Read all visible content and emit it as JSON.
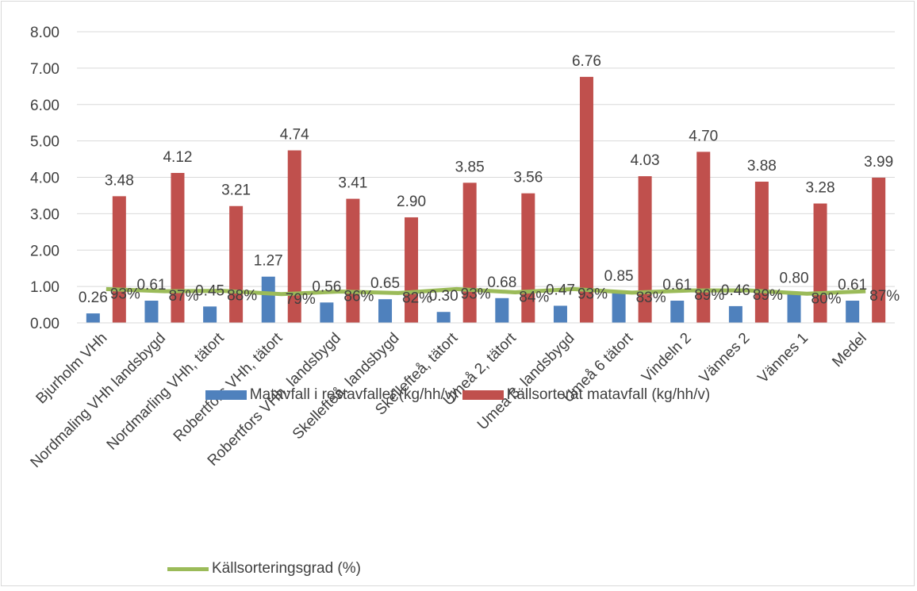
{
  "chart_data": {
    "type": "bar",
    "categories": [
      "Bjurholm VHh",
      "Nordmaling VHh landsbygd",
      "Nordmarling VHh, tätort",
      "Robertfors VHh, tätort",
      "Robertfors VHh, landsbygd",
      "Skellefteå, landsbygd",
      "Skellefteå, tätort",
      "Umeå 2, tätort",
      "Umeå 3, landsbygd",
      "Umeå 6 tätort",
      "Vindeln 2",
      "Vännes 2",
      "Vännes 1",
      "Medel"
    ],
    "series": [
      {
        "name": "Matavfall i restavfallet (kg/hh/v)",
        "type": "bar",
        "color": "#4f81bd",
        "values": [
          0.26,
          0.61,
          0.45,
          1.27,
          0.56,
          0.65,
          0.3,
          0.68,
          0.47,
          0.85,
          0.61,
          0.46,
          0.8,
          0.61
        ],
        "labels": [
          "0.26",
          "0.61",
          "0.45",
          "1.27",
          "0.56",
          "0.65",
          "0.30",
          "0.68",
          "0.47",
          "0.85",
          "0.61",
          "0.46",
          "0.80",
          "0.61"
        ]
      },
      {
        "name": "Källsorterat matavfall (kg/hh/v)",
        "type": "bar",
        "color": "#c0504d",
        "values": [
          3.48,
          4.12,
          3.21,
          4.74,
          3.41,
          2.9,
          3.85,
          3.56,
          6.76,
          4.03,
          4.7,
          3.88,
          3.28,
          3.99
        ],
        "labels": [
          "3.48",
          "4.12",
          "3.21",
          "4.74",
          "3.41",
          "2.90",
          "3.85",
          "3.56",
          "6.76",
          "4.03",
          "4.70",
          "3.88",
          "3.28",
          "3.99"
        ]
      },
      {
        "name": "Källsorteringsgrad (%)",
        "type": "line",
        "color": "#9bbb59",
        "values": [
          0.93,
          0.87,
          0.88,
          0.79,
          0.86,
          0.82,
          0.93,
          0.84,
          0.93,
          0.83,
          0.89,
          0.89,
          0.8,
          0.87
        ],
        "labels": [
          "93%",
          "87%",
          "88%",
          "79%",
          "86%",
          "82%",
          "93%",
          "84%",
          "93%",
          "83%",
          "89%",
          "89%",
          "80%",
          "87%"
        ]
      }
    ],
    "yticks": [
      "0.00",
      "1.00",
      "2.00",
      "3.00",
      "4.00",
      "5.00",
      "6.00",
      "7.00",
      "8.00"
    ],
    "ylim": [
      0,
      8
    ],
    "grid": true,
    "legend_position": "bottom"
  }
}
